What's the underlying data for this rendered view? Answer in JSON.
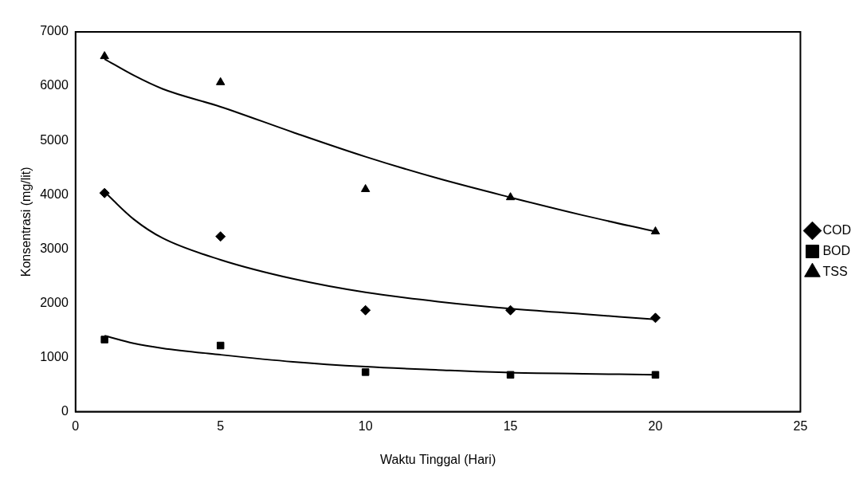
{
  "chart_data": {
    "type": "scatter",
    "xlabel": "Waktu Tinggal (Hari)",
    "ylabel": "Konsentrasi (mg/lit)",
    "x": [
      1,
      5,
      10,
      15,
      20
    ],
    "series": [
      {
        "name": "COD",
        "color": "#000000",
        "marker": "diamond",
        "values": [
          4030,
          3230,
          1870,
          1870,
          1730
        ]
      },
      {
        "name": "BOD",
        "color": "#000000",
        "marker": "square",
        "values": [
          1330,
          1220,
          730,
          680,
          680
        ]
      },
      {
        "name": "TSS",
        "color": "#000000",
        "marker": "triangle",
        "values": [
          6550,
          6070,
          4100,
          3950,
          3320
        ]
      },
      {
        "type": "line",
        "color": "#000000",
        "marker": "none",
        "x": [
          1,
          2,
          3,
          5,
          7.5,
          10,
          12.5,
          15,
          17.5,
          20
        ],
        "values": [
          4050,
          3550,
          3200,
          2800,
          2450,
          2200,
          2030,
          1900,
          1800,
          1700
        ]
      },
      {
        "type": "line",
        "color": "#000000",
        "marker": "none",
        "x": [
          1,
          2,
          3,
          5,
          7.5,
          10,
          12.5,
          15,
          17.5,
          20
        ],
        "values": [
          1400,
          1260,
          1170,
          1050,
          920,
          830,
          770,
          720,
          700,
          680
        ]
      },
      {
        "type": "line",
        "color": "#000000",
        "marker": "none",
        "x": [
          1,
          2,
          3,
          5,
          7.5,
          10,
          12.5,
          15,
          17.5,
          20
        ],
        "values": [
          6500,
          6200,
          5950,
          5620,
          5150,
          4700,
          4300,
          3950,
          3620,
          3320
        ]
      }
    ],
    "xlim": [
      0,
      25
    ],
    "xticks": [
      0,
      5,
      10,
      15,
      20,
      25
    ],
    "ylim": [
      0,
      7000
    ],
    "yticks": [
      0,
      1000,
      2000,
      3000,
      4000,
      5000,
      6000,
      7000
    ],
    "grid": false,
    "legend": "right"
  }
}
